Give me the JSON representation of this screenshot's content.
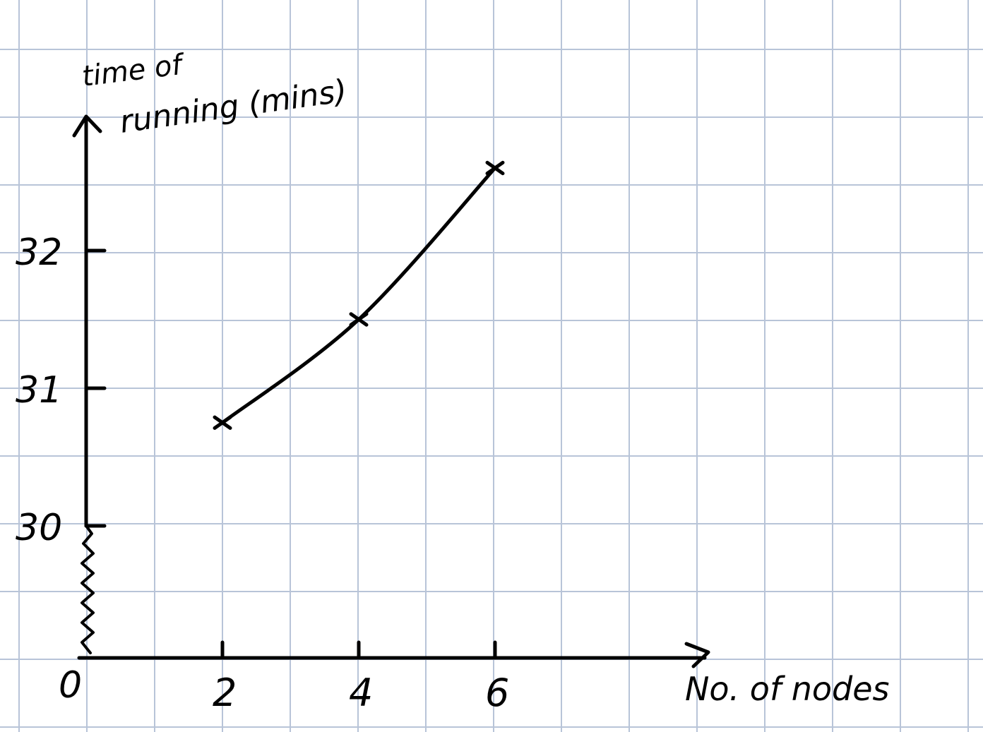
{
  "chart_data": {
    "type": "line",
    "ylabel_line1": "time of",
    "ylabel_line2": "running (mins)",
    "xlabel": "No. of nodes",
    "origin_label": "0",
    "x_ticks": [
      "2",
      "4",
      "6"
    ],
    "y_ticks": [
      "30",
      "31",
      "32"
    ],
    "x_axis_break": false,
    "y_axis_break": true,
    "grid": true,
    "series": [
      {
        "x": [
          2,
          4,
          6
        ],
        "y": [
          30.75,
          31.5,
          32.6
        ],
        "marker": "x"
      }
    ],
    "colors": {
      "ink": "#000000",
      "grid": "#b8c4d8",
      "background": "#ffffff"
    }
  }
}
